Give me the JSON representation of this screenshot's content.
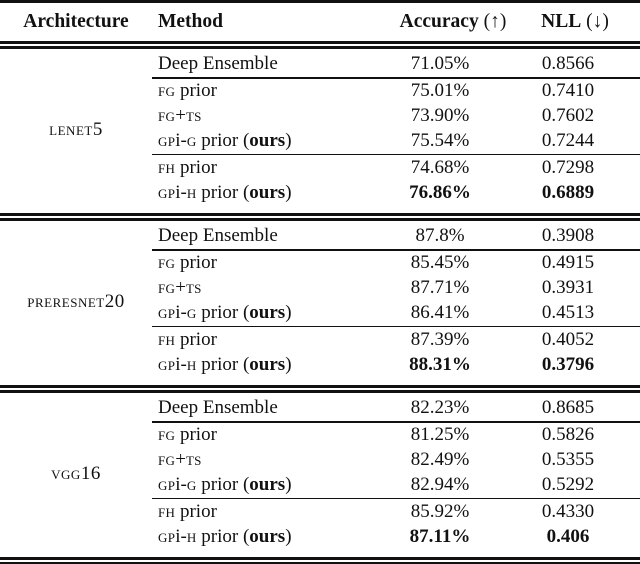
{
  "colors": {
    "text": "#111111",
    "background": "#ffffff",
    "rule": "#111111"
  },
  "table": {
    "headers": {
      "architecture": [
        {
          "t": "Architecture",
          "b": true
        }
      ],
      "method": [
        {
          "t": "Method",
          "b": true
        }
      ],
      "accuracy": [
        {
          "t": "Accuracy",
          "b": true
        },
        {
          "t": " (↑)"
        }
      ],
      "nll": [
        {
          "t": "NLL",
          "b": true
        },
        {
          "t": " (↓)"
        }
      ]
    },
    "groups": [
      {
        "architecture": "lenet5",
        "rows": [
          {
            "method": [
              {
                "t": "Deep Ensemble"
              }
            ],
            "accuracy": "71.05%",
            "nll": "0.8566",
            "bold_values": false,
            "rule_after": true
          },
          {
            "method": [
              {
                "t": "fg",
                "sc": true
              },
              {
                "t": " prior"
              }
            ],
            "accuracy": "75.01%",
            "nll": "0.7410",
            "bold_values": false,
            "rule_after": false
          },
          {
            "method": [
              {
                "t": "fg",
                "sc": true
              },
              {
                "t": "+"
              },
              {
                "t": "ts",
                "sc": true
              }
            ],
            "accuracy": "73.90%",
            "nll": "0.7602",
            "bold_values": false,
            "rule_after": false
          },
          {
            "method": [
              {
                "t": "gp",
                "sc": true
              },
              {
                "t": "i-"
              },
              {
                "t": "g",
                "sc": true
              },
              {
                "t": " prior ("
              },
              {
                "t": "ours",
                "b": true
              },
              {
                "t": ")"
              }
            ],
            "accuracy": "75.54%",
            "nll": "0.7244",
            "bold_values": false,
            "rule_after": true
          },
          {
            "method": [
              {
                "t": "fh",
                "sc": true
              },
              {
                "t": " prior"
              }
            ],
            "accuracy": "74.68%",
            "nll": "0.7298",
            "bold_values": false,
            "rule_after": false
          },
          {
            "method": [
              {
                "t": "gp",
                "sc": true
              },
              {
                "t": "i-"
              },
              {
                "t": "h",
                "sc": true
              },
              {
                "t": " prior ("
              },
              {
                "t": "ours",
                "b": true
              },
              {
                "t": ")"
              }
            ],
            "accuracy": "76.86%",
            "nll": "0.6889",
            "bold_values": true,
            "rule_after": false
          }
        ]
      },
      {
        "architecture": "preresnet20",
        "rows": [
          {
            "method": [
              {
                "t": "Deep Ensemble"
              }
            ],
            "accuracy": "87.8%",
            "nll": "0.3908",
            "bold_values": false,
            "rule_after": true
          },
          {
            "method": [
              {
                "t": "fg",
                "sc": true
              },
              {
                "t": " prior"
              }
            ],
            "accuracy": "85.45%",
            "nll": "0.4915",
            "bold_values": false,
            "rule_after": false
          },
          {
            "method": [
              {
                "t": "fg",
                "sc": true
              },
              {
                "t": "+"
              },
              {
                "t": "ts",
                "sc": true
              }
            ],
            "accuracy": "87.71%",
            "nll": "0.3931",
            "bold_values": false,
            "rule_after": false
          },
          {
            "method": [
              {
                "t": "gp",
                "sc": true
              },
              {
                "t": "i-"
              },
              {
                "t": "g",
                "sc": true
              },
              {
                "t": " prior ("
              },
              {
                "t": "ours",
                "b": true
              },
              {
                "t": ")"
              }
            ],
            "accuracy": "86.41%",
            "nll": "0.4513",
            "bold_values": false,
            "rule_after": true
          },
          {
            "method": [
              {
                "t": "fh",
                "sc": true
              },
              {
                "t": " prior"
              }
            ],
            "accuracy": "87.39%",
            "nll": "0.4052",
            "bold_values": false,
            "rule_after": false
          },
          {
            "method": [
              {
                "t": "gp",
                "sc": true
              },
              {
                "t": "i-"
              },
              {
                "t": "h",
                "sc": true
              },
              {
                "t": " prior ("
              },
              {
                "t": "ours",
                "b": true
              },
              {
                "t": ")"
              }
            ],
            "accuracy": "88.31%",
            "nll": "0.3796",
            "bold_values": true,
            "rule_after": false
          }
        ]
      },
      {
        "architecture": "vgg16",
        "rows": [
          {
            "method": [
              {
                "t": "Deep Ensemble"
              }
            ],
            "accuracy": "82.23%",
            "nll": "0.8685",
            "bold_values": false,
            "rule_after": true
          },
          {
            "method": [
              {
                "t": "fg",
                "sc": true
              },
              {
                "t": " prior"
              }
            ],
            "accuracy": "81.25%",
            "nll": "0.5826",
            "bold_values": false,
            "rule_after": false
          },
          {
            "method": [
              {
                "t": "fg",
                "sc": true
              },
              {
                "t": "+"
              },
              {
                "t": "ts",
                "sc": true
              }
            ],
            "accuracy": "82.49%",
            "nll": "0.5355",
            "bold_values": false,
            "rule_after": false
          },
          {
            "method": [
              {
                "t": "gp",
                "sc": true
              },
              {
                "t": "i-"
              },
              {
                "t": "g",
                "sc": true
              },
              {
                "t": " prior ("
              },
              {
                "t": "ours",
                "b": true
              },
              {
                "t": ")"
              }
            ],
            "accuracy": "82.94%",
            "nll": "0.5292",
            "bold_values": false,
            "rule_after": true
          },
          {
            "method": [
              {
                "t": "fh",
                "sc": true
              },
              {
                "t": " prior"
              }
            ],
            "accuracy": "85.92%",
            "nll": "0.4330",
            "bold_values": false,
            "rule_after": false
          },
          {
            "method": [
              {
                "t": "gp",
                "sc": true
              },
              {
                "t": "i-"
              },
              {
                "t": "h",
                "sc": true
              },
              {
                "t": " prior ("
              },
              {
                "t": "ours",
                "b": true
              },
              {
                "t": ")"
              }
            ],
            "accuracy": "87.11%",
            "nll": "0.406",
            "bold_values": true,
            "rule_after": false
          }
        ]
      }
    ]
  }
}
